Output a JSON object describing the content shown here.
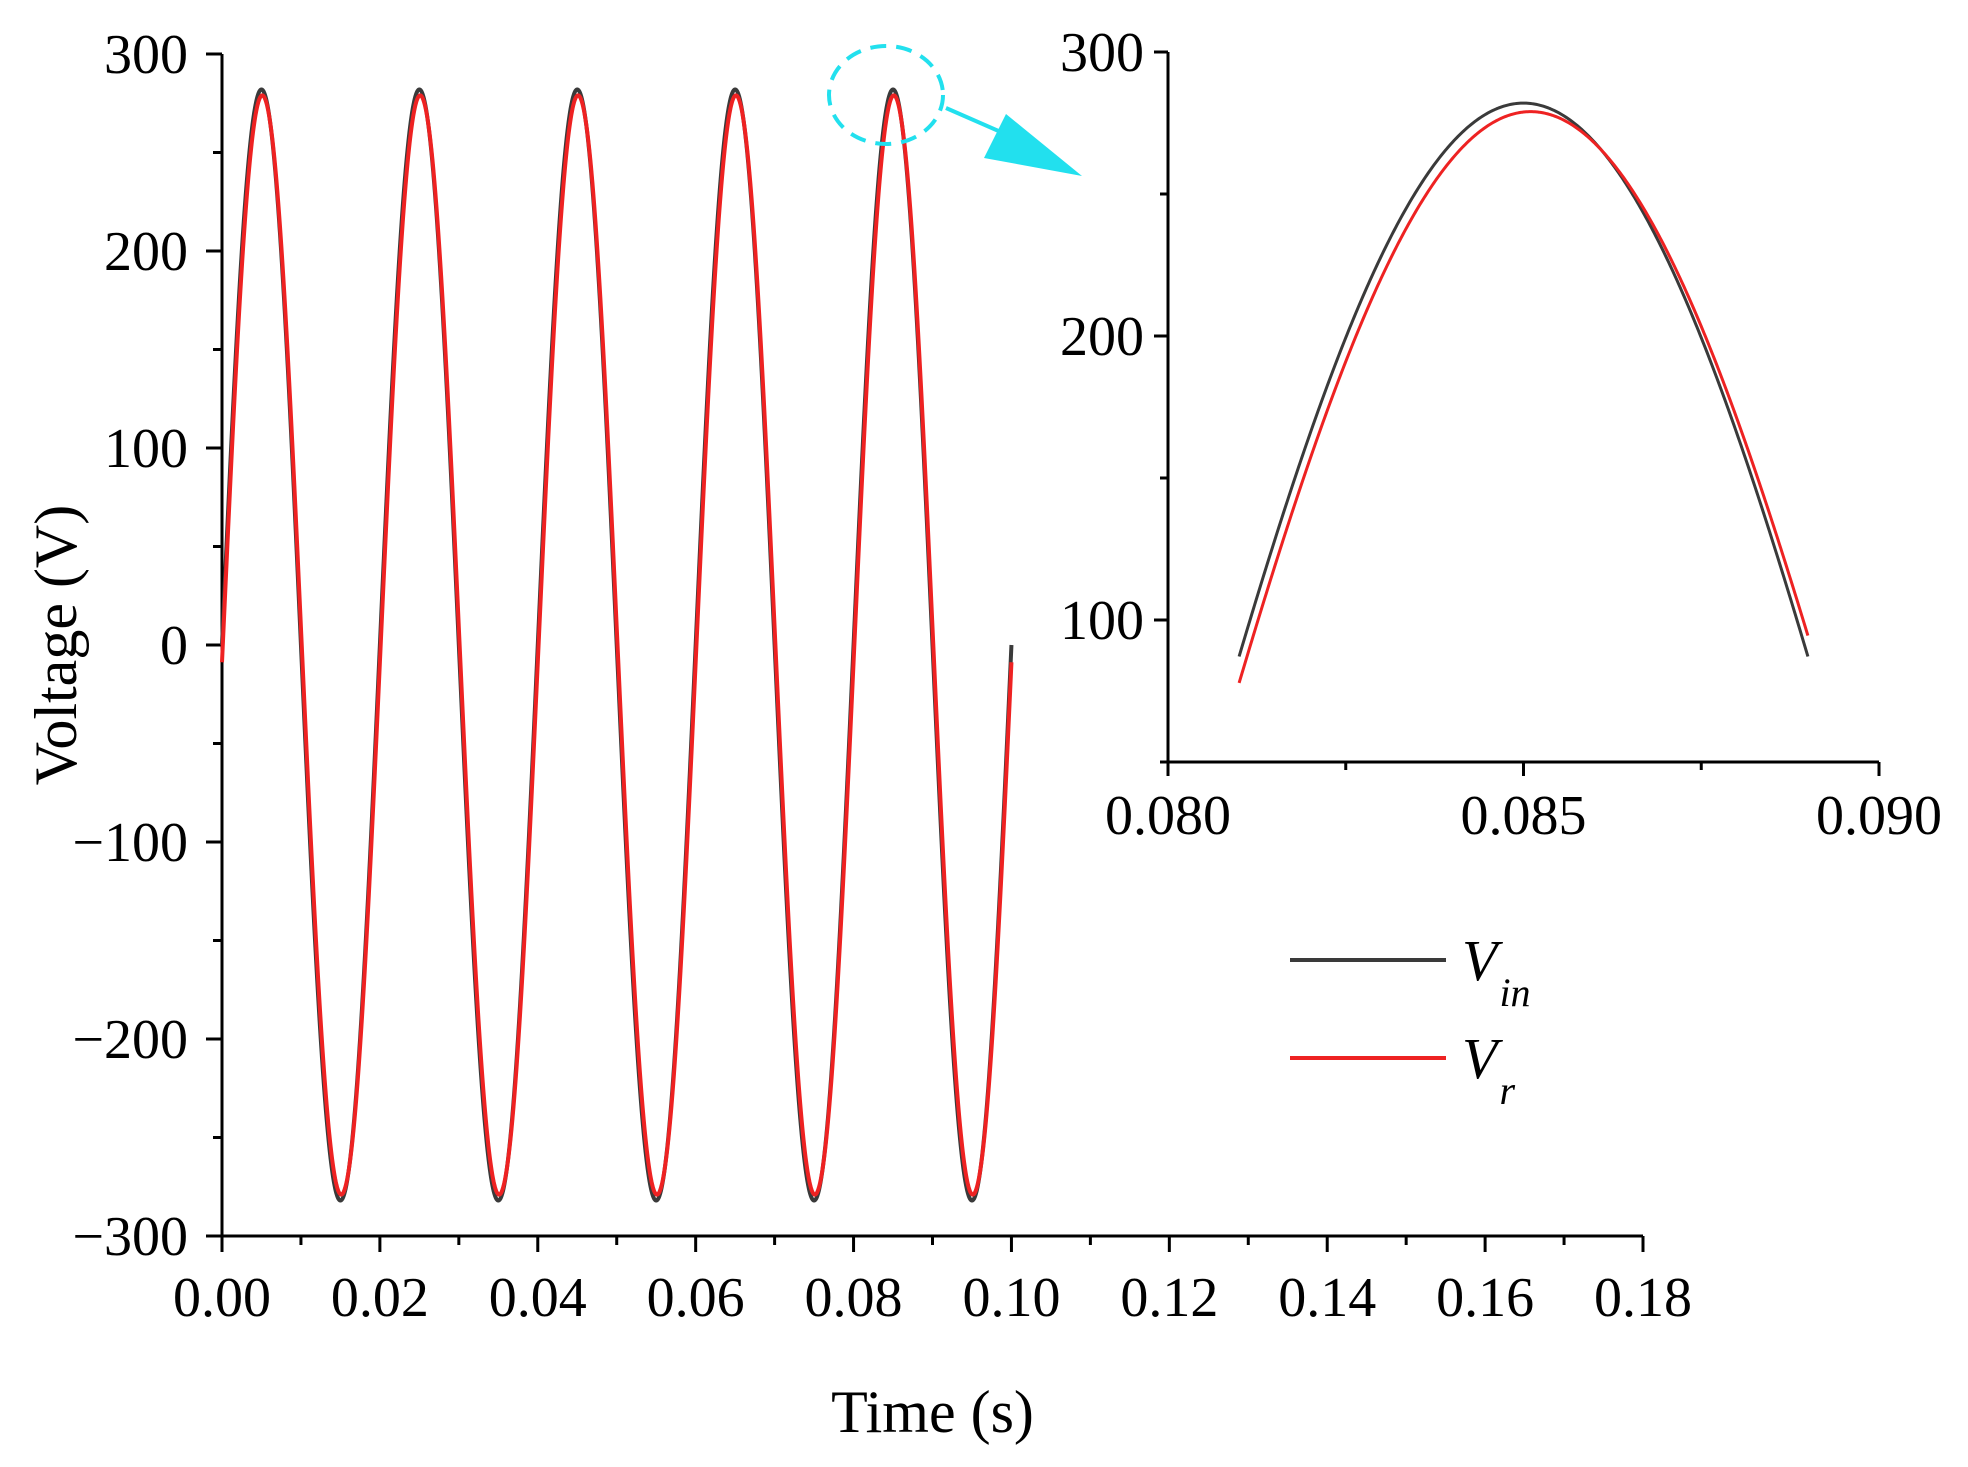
{
  "chart_data": [
    {
      "type": "line",
      "role": "main",
      "xlabel": "Time (s)",
      "ylabel": "Voltage (V)",
      "xlim": [
        0,
        0.18
      ],
      "ylim": [
        -300,
        300
      ],
      "x_ticks": [
        "0.00",
        "0.02",
        "0.04",
        "0.06",
        "0.08",
        "0.10",
        "0.12",
        "0.14",
        "0.16",
        "0.18"
      ],
      "y_ticks": [
        "300",
        "200",
        "100",
        "0",
        "−100",
        "−200",
        "−300"
      ],
      "series": [
        {
          "name": "V_in",
          "color": "#3a3a3a",
          "amplitude": 282,
          "frequency_hz": 50,
          "t_start": 0,
          "t_end": 0.1
        },
        {
          "name": "V_r",
          "color": "#ee2222",
          "amplitude": 279,
          "frequency_hz": 50,
          "phase_lag_s": 0.0001,
          "t_start": 0,
          "t_end": 0.1
        }
      ],
      "grid": false
    },
    {
      "type": "line",
      "role": "inset-zoom",
      "xlim": [
        0.08,
        0.09
      ],
      "ylim": [
        50,
        300
      ],
      "x_ticks": [
        "0.080",
        "0.085",
        "0.090"
      ],
      "y_ticks": [
        "300",
        "200",
        "100"
      ],
      "series": [
        {
          "name": "V_in",
          "color": "#3a3a3a",
          "amplitude": 282,
          "frequency_hz": 50,
          "t_start": 0.081,
          "t_end": 0.089
        },
        {
          "name": "V_r",
          "color": "#ee2222",
          "amplitude": 279,
          "frequency_hz": 50,
          "phase_lag_s": 0.0001,
          "t_start": 0.081,
          "t_end": 0.089
        }
      ],
      "zoom_marker_color": "#22e0ee"
    }
  ],
  "legend": {
    "items": [
      {
        "base": "V",
        "sub": "in",
        "color": "#3a3a3a"
      },
      {
        "base": "V",
        "sub": "r",
        "color": "#ee2222"
      }
    ]
  }
}
